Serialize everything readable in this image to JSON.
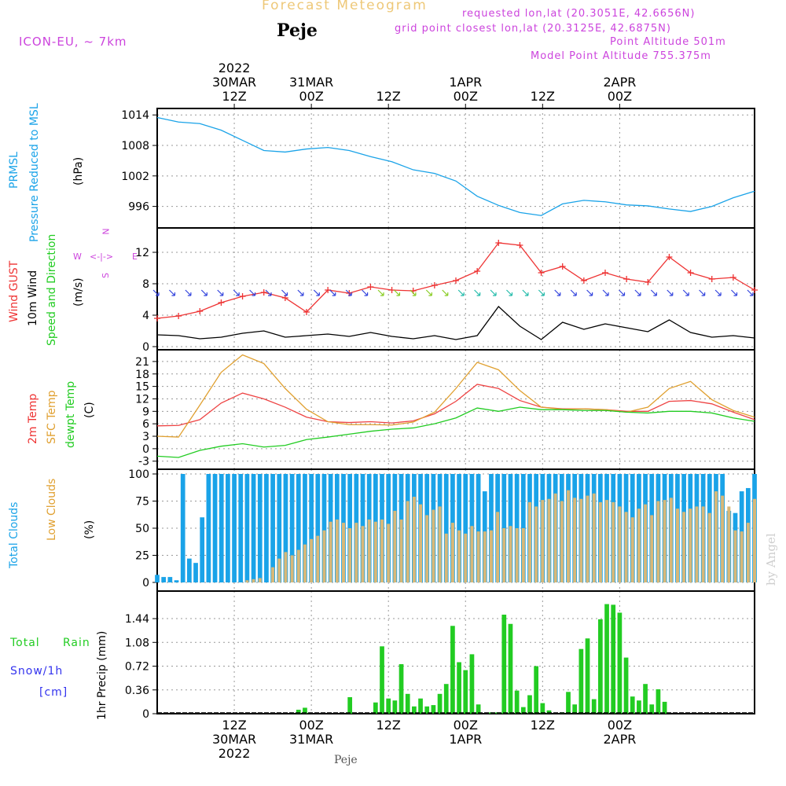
{
  "header": {
    "app_title": "Forecast Meteogram",
    "station": "Peje",
    "model": "ICON-EU, ~ 7km",
    "requested": "requested lon,lat (20.3051E, 42.6656N)",
    "gridpoint": "grid point closest lon,lat (20.3125E, 42.6875N)",
    "point_altitude": "Point Altitude 501m",
    "model_altitude": "Model Point Altitude 755.375m",
    "footer_station": "Peje",
    "watermark": "by Angel"
  },
  "colors": {
    "pressure": "#1aa3e8",
    "gust": "#ee3333",
    "wind": "#000000",
    "t2m": "#ee4444",
    "sfc": "#e0a030",
    "dew": "#22cc22",
    "total_clouds": "#1aa3e8",
    "low_clouds": "#d8b878",
    "rain": "#22cc22",
    "snow": "#3333ee",
    "meta": "#cc44dd"
  },
  "chart_data": [
    {
      "type": "line",
      "panel": "pressure",
      "labels": [
        "PRMSL",
        "Pressure Reduced to MSL"
      ],
      "ylabel": "(hPa)",
      "ylim": [
        993,
        1014.5
      ],
      "yticks": [
        996,
        1002,
        1008,
        1014
      ],
      "x": [
        0,
        3,
        6,
        9,
        12,
        15,
        18,
        21,
        24,
        27,
        30,
        33,
        36,
        39,
        42,
        45,
        48,
        51,
        54,
        57,
        60,
        63,
        66,
        69,
        72,
        75,
        78,
        81,
        84
      ],
      "series": [
        {
          "values": [
            1013.5,
            1012.6,
            1012.3,
            1011,
            1009,
            1007,
            1006.7,
            1007.3,
            1007.6,
            1007,
            1005.8,
            1004.8,
            1003.2,
            1002.5,
            1001,
            998,
            996.2,
            994.8,
            994.2,
            996.5,
            997.2,
            996.9,
            996.3,
            996.1,
            995.5,
            995,
            996,
            997.7,
            999
          ]
        },
        {
          "values": null
        }
      ]
    },
    {
      "type": "line",
      "panel": "wind",
      "labels": [
        "Wind GUST",
        "10m Wind",
        "Speed and Direction"
      ],
      "ylabel": "(m/s)",
      "compass": [
        "N",
        "W",
        "<-|->",
        "E",
        "S"
      ],
      "ylim": [
        0,
        14.5
      ],
      "yticks": [
        0,
        4,
        8,
        12
      ],
      "x": [
        0,
        3,
        6,
        9,
        12,
        15,
        18,
        21,
        24,
        27,
        30,
        33,
        36,
        39,
        42,
        45,
        48,
        51,
        54,
        57,
        60,
        63,
        66,
        69,
        72,
        75,
        78,
        81,
        84
      ],
      "series": [
        {
          "name": "Wind GUST",
          "values": [
            3.6,
            3.9,
            4.5,
            5.6,
            6.4,
            6.9,
            6.2,
            4.4,
            7.2,
            6.8,
            7.6,
            7.2,
            7.1,
            7.8,
            8.4,
            9.6,
            13.2,
            12.9,
            9.4,
            10.2,
            8.4,
            9.4,
            8.6,
            8.2,
            11.4,
            9.4,
            8.6,
            8.8,
            7.2
          ]
        },
        {
          "name": "10m Wind",
          "values": [
            1.5,
            1.4,
            1,
            1.2,
            1.7,
            2,
            1.2,
            1.4,
            1.6,
            1.3,
            1.8,
            1.3,
            1,
            1.4,
            0.9,
            1.4,
            5.1,
            2.6,
            0.9,
            3.1,
            2.2,
            2.9,
            2.4,
            1.9,
            3.4,
            1.8,
            1.2,
            1.4,
            1.1
          ]
        }
      ]
    },
    {
      "type": "line",
      "panel": "temperature",
      "labels": [
        "2m Temp",
        "SFC Temp",
        "dewpt Temp"
      ],
      "ylabel": "(C)",
      "ylim": [
        -4,
        22.5
      ],
      "yticks": [
        -3,
        0,
        3,
        6,
        9,
        12,
        15,
        18,
        21
      ],
      "x": [
        0,
        3,
        6,
        9,
        12,
        15,
        18,
        21,
        24,
        27,
        30,
        33,
        36,
        39,
        42,
        45,
        48,
        51,
        54,
        57,
        60,
        63,
        66,
        69,
        72,
        75,
        78,
        81,
        84
      ],
      "series": [
        {
          "name": "2m Temp",
          "values": [
            5.5,
            5.6,
            7,
            11,
            13.4,
            12,
            10,
            7.6,
            6.5,
            6.3,
            6.5,
            6.2,
            6.7,
            8.4,
            11.4,
            15.5,
            14.5,
            11.6,
            10,
            9.6,
            9.6,
            9.4,
            9,
            9,
            11.4,
            11.6,
            10.8,
            8.8,
            7
          ]
        },
        {
          "name": "SFC Temp",
          "values": [
            3,
            2.8,
            10.5,
            18.4,
            22.6,
            20.5,
            14.5,
            9.5,
            6.5,
            5.8,
            5.8,
            5.7,
            6.4,
            8.8,
            14.5,
            20.8,
            19,
            14,
            10,
            9.5,
            9.6,
            9.4,
            8.8,
            10,
            14.5,
            16.2,
            11.8,
            9.2,
            7.6
          ]
        },
        {
          "name": "dewpt Temp",
          "values": [
            -1.8,
            -2.1,
            -0.4,
            0.6,
            1.2,
            0.4,
            0.8,
            2.2,
            2.8,
            3.5,
            4.2,
            4.7,
            5,
            6,
            7.4,
            9.8,
            9,
            10,
            9.4,
            9.4,
            9.2,
            9.2,
            8.8,
            8.6,
            9,
            9,
            8.6,
            7.4,
            6.6
          ]
        }
      ]
    },
    {
      "type": "bar",
      "panel": "clouds",
      "labels": [
        "Total Clouds",
        "Low Clouds"
      ],
      "ylabel": "(%)",
      "ylim": [
        0,
        100
      ],
      "yticks": [
        0,
        25,
        50,
        75,
        100
      ],
      "x": [
        0,
        1,
        2,
        3,
        4,
        5,
        6,
        7,
        8,
        9,
        10,
        11,
        12,
        13,
        14,
        15,
        16,
        17,
        18,
        19,
        20,
        21,
        22,
        23,
        24,
        25,
        26,
        27,
        28,
        29,
        30,
        31,
        32,
        33,
        34,
        35,
        36,
        37,
        38,
        39,
        40,
        41,
        42,
        43,
        44,
        45,
        46,
        47,
        48,
        49,
        50,
        51,
        52,
        53,
        54,
        55,
        56,
        57,
        58,
        59,
        60,
        61,
        62,
        63,
        64,
        65,
        66,
        67,
        68,
        69,
        70,
        71,
        72,
        73,
        74,
        75,
        76,
        77,
        78,
        79,
        80,
        81,
        82,
        83,
        84,
        85,
        86,
        87,
        88,
        89,
        90,
        91,
        92,
        93
      ],
      "series": [
        {
          "name": "Total Clouds",
          "values": [
            7,
            5,
            5,
            2,
            100,
            22,
            18,
            60,
            100,
            100,
            100,
            100,
            100,
            100,
            100,
            100,
            100,
            100,
            100,
            100,
            100,
            100,
            100,
            100,
            100,
            100,
            100,
            100,
            100,
            100,
            100,
            100,
            100,
            100,
            100,
            100,
            100,
            100,
            100,
            100,
            100,
            100,
            100,
            100,
            100,
            100,
            100,
            100,
            100,
            100,
            100,
            84,
            100,
            100,
            100,
            100,
            100,
            100,
            100,
            100,
            100,
            100,
            100,
            100,
            100,
            100,
            100,
            100,
            100,
            100,
            100,
            100,
            100,
            100,
            100,
            100,
            100,
            100,
            100,
            100,
            100,
            100,
            100,
            100,
            100,
            100,
            100,
            100,
            100,
            66,
            64,
            84,
            87,
            100
          ]
        },
        {
          "name": "Low Clouds",
          "values": [
            0,
            0,
            0,
            0,
            0,
            0,
            0,
            0,
            0,
            0,
            0,
            0,
            0,
            0,
            2,
            3,
            4,
            0,
            14,
            22,
            28,
            25,
            30,
            35,
            40,
            43,
            48,
            56,
            58,
            55,
            50,
            55,
            52,
            58,
            56,
            58,
            54,
            66,
            58,
            75,
            79,
            72,
            62,
            67,
            70,
            45,
            55,
            48,
            45,
            52,
            47,
            47,
            48,
            65,
            50,
            52,
            50,
            50,
            74,
            70,
            76,
            77,
            82,
            75,
            85,
            78,
            77,
            80,
            82,
            74,
            76,
            74,
            70,
            65,
            60,
            68,
            72,
            62,
            75,
            76,
            78,
            68,
            65,
            68,
            70,
            70,
            64,
            84,
            80,
            70,
            48,
            47,
            55,
            77
          ]
        }
      ]
    },
    {
      "type": "bar",
      "panel": "precip",
      "labels": [
        "Total",
        "Rain",
        "Snow/1h",
        "[cm]"
      ],
      "ylabel": "1hr Precip (mm)",
      "ylim": [
        0,
        1.75
      ],
      "yticks": [
        0,
        0.36,
        0.72,
        1.08,
        1.44
      ],
      "ytick_labels": [
        "0",
        "0.36",
        "0.72",
        "1.08",
        "1.44"
      ],
      "x": [
        0,
        1,
        2,
        3,
        4,
        5,
        6,
        7,
        8,
        9,
        10,
        11,
        12,
        13,
        14,
        15,
        16,
        17,
        18,
        19,
        20,
        21,
        22,
        23,
        24,
        25,
        26,
        27,
        28,
        29,
        30,
        31,
        32,
        33,
        34,
        35,
        36,
        37,
        38,
        39,
        40,
        41,
        42,
        43,
        44,
        45,
        46,
        47,
        48,
        49,
        50,
        51,
        52,
        53,
        54,
        55,
        56,
        57,
        58,
        59,
        60,
        61,
        62,
        63,
        64,
        65,
        66,
        67,
        68,
        69,
        70,
        71,
        72,
        73,
        74,
        75,
        76,
        77,
        78,
        79,
        80,
        81,
        82,
        83,
        84,
        85,
        86,
        87,
        88,
        89,
        90,
        91,
        92,
        93
      ],
      "series": [
        {
          "name": "Rain",
          "values": [
            0,
            0,
            0,
            0,
            0,
            0,
            0,
            0,
            0,
            0,
            0,
            0,
            0,
            0,
            0,
            0,
            0,
            0,
            0,
            0,
            0,
            0,
            0.06,
            0.09,
            0,
            0,
            0,
            0,
            0,
            0,
            0.25,
            0,
            0,
            0,
            0.17,
            1.02,
            0.23,
            0.2,
            0.75,
            0.3,
            0.11,
            0.23,
            0.11,
            0.13,
            0.3,
            0.45,
            1.33,
            0.78,
            0.66,
            0.9,
            0.14,
            0,
            0.02,
            0.02,
            1.5,
            1.36,
            0.35,
            0.1,
            0.28,
            0.72,
            0.16,
            0.05,
            0,
            0.02,
            0.33,
            0.14,
            0.98,
            1.14,
            0.22,
            1.43,
            1.66,
            1.65,
            1.53,
            0.85,
            0.26,
            0.2,
            0.45,
            0.14,
            0.37,
            0.18,
            0,
            0,
            0,
            0,
            0,
            0,
            0,
            0,
            0,
            0,
            0,
            0,
            0,
            0
          ]
        }
      ]
    }
  ],
  "time_axis": {
    "top": [
      {
        "l1": "2022",
        "l2": "30MAR",
        "l3": "12Z"
      },
      {
        "l1": "",
        "l2": "31MAR",
        "l3": "00Z"
      },
      {
        "l1": "",
        "l2": "",
        "l3": "12Z"
      },
      {
        "l1": "",
        "l2": "1APR",
        "l3": "00Z"
      },
      {
        "l1": "",
        "l2": "",
        "l3": "12Z"
      },
      {
        "l1": "",
        "l2": "2APR",
        "l3": "00Z"
      }
    ],
    "bottom": [
      {
        "l1": "12Z",
        "l2": "30MAR",
        "l3": "2022"
      },
      {
        "l1": "00Z",
        "l2": "31MAR",
        "l3": ""
      },
      {
        "l1": "12Z",
        "l2": "",
        "l3": ""
      },
      {
        "l1": "00Z",
        "l2": "1APR",
        "l3": ""
      },
      {
        "l1": "12Z",
        "l2": "",
        "l3": ""
      },
      {
        "l1": "00Z",
        "l2": "2APR",
        "l3": ""
      }
    ]
  }
}
